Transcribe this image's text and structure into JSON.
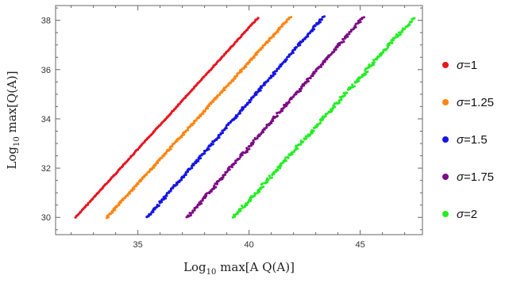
{
  "chart_data": {
    "type": "scatter",
    "title": "",
    "xlabel": {
      "base": "Log",
      "sub": "10",
      "rest": " max[A Q(A)]"
    },
    "ylabel": {
      "base": "Log",
      "sub": "10",
      "rest": " max[Q(A)]"
    },
    "xlim": [
      31.3,
      47.8
    ],
    "ylim": [
      29.3,
      38.6
    ],
    "xticks": [
      35,
      40,
      45
    ],
    "yticks": [
      30,
      32,
      34,
      36,
      38
    ],
    "grid": false,
    "legend_position": "right",
    "series": [
      {
        "name": "σ=1",
        "sigma": "σ",
        "value": "=1",
        "color": "#e8141e",
        "x": [
          32.2,
          40.4
        ],
        "y": [
          30.0,
          38.1
        ]
      },
      {
        "name": "σ=1.25",
        "sigma": "σ",
        "value": "=1.25",
        "color": "#ff8510",
        "x": [
          33.6,
          41.8
        ],
        "y": [
          30.0,
          38.1
        ]
      },
      {
        "name": "σ=1.5",
        "sigma": "σ",
        "value": "=1.5",
        "color": "#1414e6",
        "x": [
          35.4,
          43.3
        ],
        "y": [
          30.0,
          38.1
        ]
      },
      {
        "name": "σ=1.75",
        "sigma": "σ",
        "value": "=1.75",
        "color": "#7e0a86",
        "x": [
          37.2,
          45.1
        ],
        "y": [
          30.0,
          38.1
        ]
      },
      {
        "name": "σ=2",
        "sigma": "σ",
        "value": "=2",
        "color": "#22ee22",
        "x": [
          39.3,
          47.4
        ],
        "y": [
          30.0,
          38.1
        ]
      }
    ]
  }
}
